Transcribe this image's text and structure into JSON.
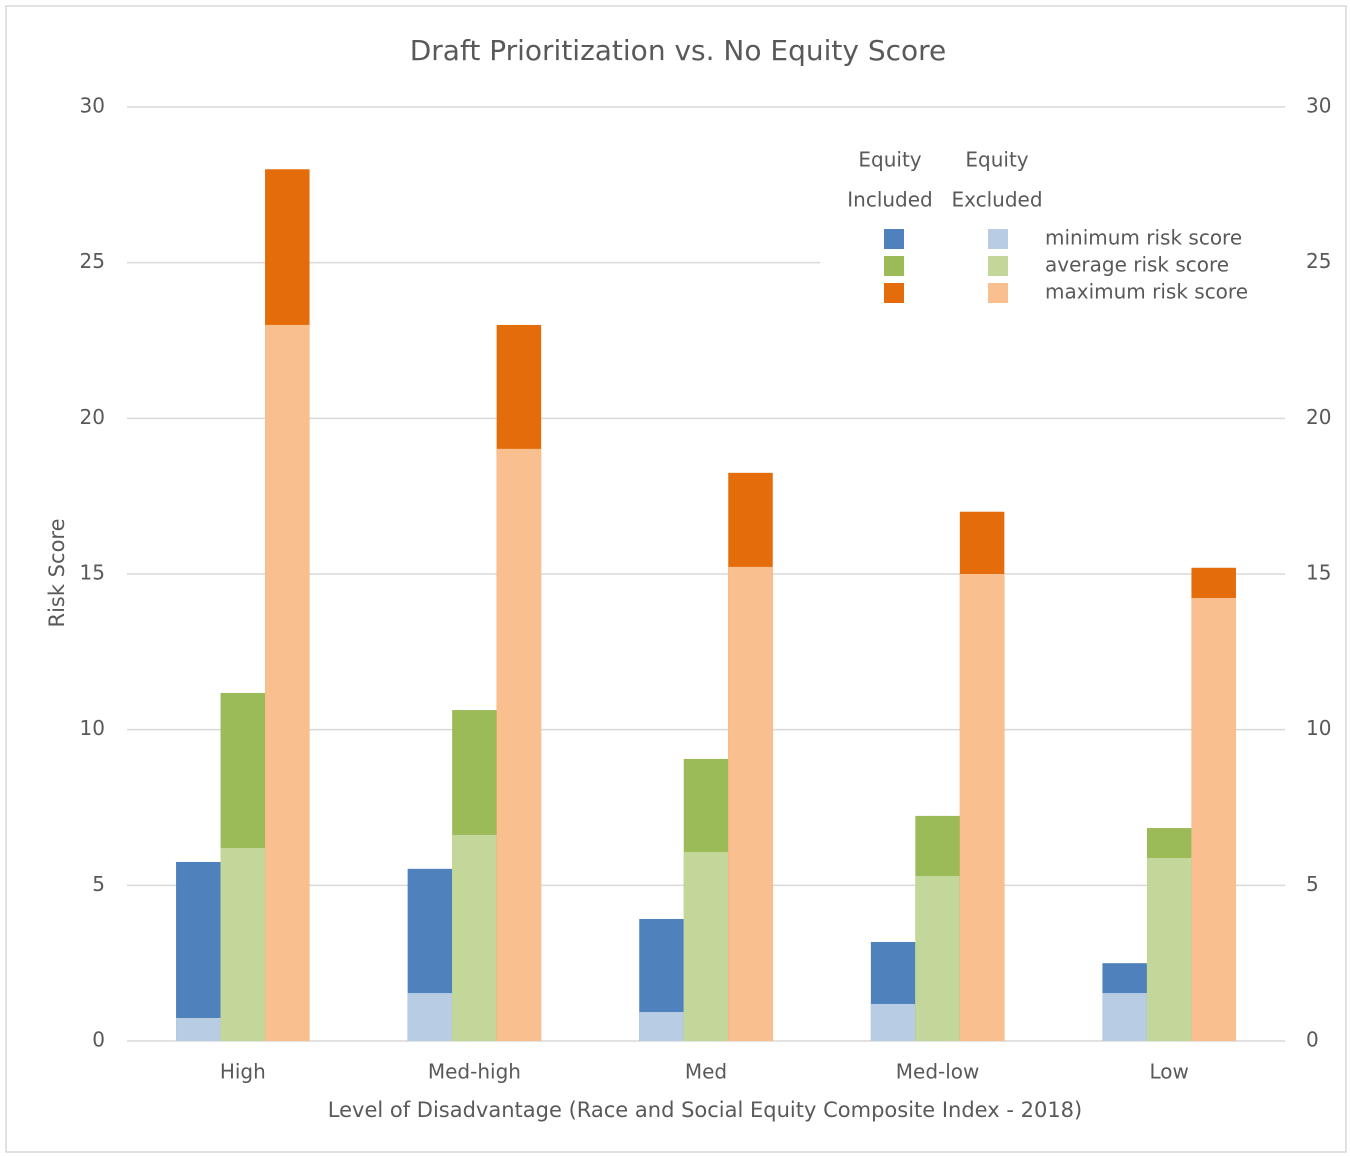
{
  "chart_data": {
    "type": "bar",
    "title": "Draft Prioritization vs. No Equity Score",
    "x_label": "Level of Disadvantage (Race and Social Equity Composite Index - 2018)",
    "y_label": "Risk Score",
    "categories": [
      "High",
      "Med-high",
      "Med",
      "Med-low",
      "Low"
    ],
    "legend_columns": [
      [
        "Equity",
        "Included"
      ],
      [
        "Equity",
        "Excluded"
      ]
    ],
    "series": [
      {
        "name": "minimum risk score",
        "color": "#4f81bd",
        "values": [
          5.75,
          5.53,
          3.92,
          3.18,
          2.5
        ],
        "excluded_color": "#b8cce4",
        "excluded_values": [
          0.74,
          1.54,
          0.93,
          1.19,
          1.54
        ]
      },
      {
        "name": "average risk score",
        "color": "#9bbb59",
        "values": [
          11.18,
          10.63,
          9.06,
          7.23,
          6.84
        ],
        "excluded_color": "#c4d79b",
        "excluded_values": [
          6.2,
          6.62,
          6.07,
          5.3,
          5.88
        ]
      },
      {
        "name": "maximum risk score",
        "color": "#e46c0a",
        "values": [
          28,
          23,
          18.25,
          17,
          15.2
        ],
        "excluded_color": "#fabf8f",
        "excluded_values": [
          23,
          19.02,
          15.23,
          15,
          14.23
        ]
      }
    ],
    "ylim": [
      0,
      30
    ],
    "yticks": [
      0,
      5,
      10,
      15,
      20,
      25,
      30
    ],
    "y2lim": [
      0,
      30
    ],
    "y2ticks": [
      0,
      5,
      10,
      15,
      20,
      25,
      30
    ],
    "grid": true
  }
}
